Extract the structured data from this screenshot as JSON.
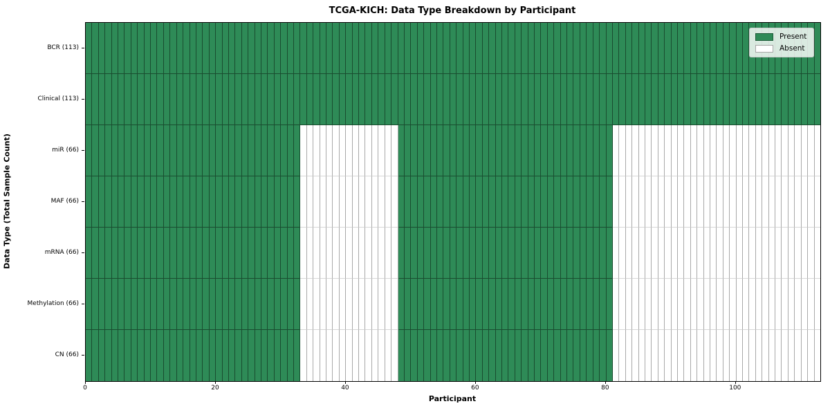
{
  "chart_data": {
    "type": "heatmap",
    "title": "TCGA-KICH: Data Type Breakdown by Participant",
    "xlabel": "Participant",
    "ylabel": "Data Type (Total Sample Count)",
    "n_participants": 113,
    "xlim": [
      0,
      113
    ],
    "x_ticks": [
      0,
      20,
      40,
      60,
      80,
      100
    ],
    "grid": true,
    "rows": [
      {
        "label": "BCR (113)",
        "total_samples": 113,
        "present_ranges": [
          [
            0,
            113
          ]
        ]
      },
      {
        "label": "Clinical (113)",
        "total_samples": 113,
        "present_ranges": [
          [
            0,
            113
          ]
        ]
      },
      {
        "label": "miR (66)",
        "total_samples": 66,
        "present_ranges": [
          [
            0,
            33
          ],
          [
            48,
            81
          ]
        ]
      },
      {
        "label": "MAF (66)",
        "total_samples": 66,
        "present_ranges": [
          [
            0,
            33
          ],
          [
            48,
            81
          ]
        ]
      },
      {
        "label": "mRNA (66)",
        "total_samples": 66,
        "present_ranges": [
          [
            0,
            33
          ],
          [
            48,
            81
          ]
        ]
      },
      {
        "label": "Methylation (66)",
        "total_samples": 66,
        "present_ranges": [
          [
            0,
            33
          ],
          [
            48,
            81
          ]
        ]
      },
      {
        "label": "CN (66)",
        "total_samples": 66,
        "present_ranges": [
          [
            0,
            33
          ],
          [
            48,
            81
          ]
        ]
      }
    ],
    "legend": {
      "position": "upper right",
      "entries": [
        {
          "label": "Present",
          "color": "#2e8b57"
        },
        {
          "label": "Absent",
          "color": "#ffffff"
        }
      ]
    },
    "colors": {
      "present": "#2e8b57",
      "absent": "#ffffff",
      "cell_border_present": "rgba(0,0,0,0.45)",
      "cell_border_absent": "#a8a8a8"
    }
  }
}
